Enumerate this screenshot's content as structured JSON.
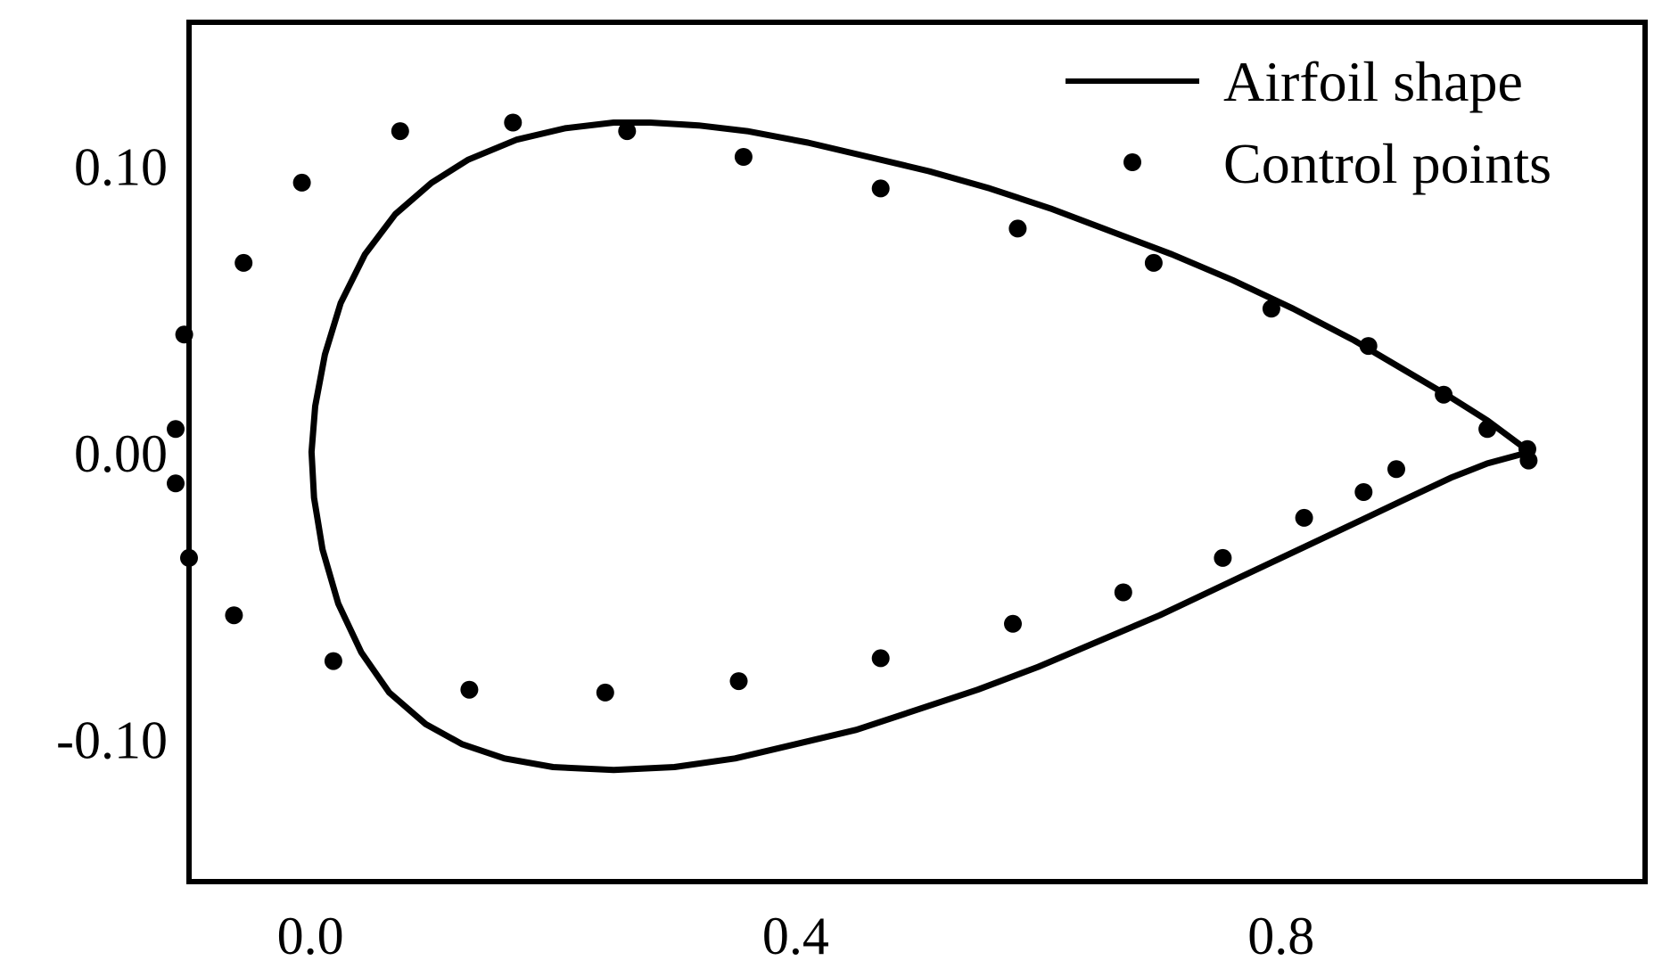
{
  "chart_data": {
    "type": "line",
    "title": "",
    "xlabel": "",
    "ylabel": "",
    "xlim": [
      -0.1,
      1.1
    ],
    "ylim": [
      -0.15,
      0.15
    ],
    "xticks": [
      0.0,
      0.4,
      0.8
    ],
    "xtick_labels": [
      "0.0",
      "0.4",
      "0.8"
    ],
    "yticks": [
      0.1,
      0.0,
      -0.1
    ],
    "ytick_labels": [
      "0.10",
      "0.00",
      "-0.10"
    ],
    "grid": false,
    "legend_position": "top-right",
    "colors": {
      "line": "#000000",
      "points": "#000000",
      "axes": "#000000",
      "background": "#ffffff"
    },
    "series": [
      {
        "name": "Airfoil shape",
        "style": "line",
        "points": [
          [
            1.005,
            0.0
          ],
          [
            0.97,
            0.011
          ],
          [
            0.94,
            0.019
          ],
          [
            0.9,
            0.029
          ],
          [
            0.86,
            0.039
          ],
          [
            0.81,
            0.05
          ],
          [
            0.76,
            0.06
          ],
          [
            0.71,
            0.069
          ],
          [
            0.66,
            0.077
          ],
          [
            0.61,
            0.085
          ],
          [
            0.56,
            0.092
          ],
          [
            0.51,
            0.098
          ],
          [
            0.46,
            0.103
          ],
          [
            0.41,
            0.108
          ],
          [
            0.36,
            0.112
          ],
          [
            0.32,
            0.114
          ],
          [
            0.28,
            0.115
          ],
          [
            0.25,
            0.115
          ],
          [
            0.21,
            0.113
          ],
          [
            0.17,
            0.109
          ],
          [
            0.13,
            0.102
          ],
          [
            0.1,
            0.094
          ],
          [
            0.07,
            0.083
          ],
          [
            0.045,
            0.069
          ],
          [
            0.025,
            0.052
          ],
          [
            0.012,
            0.034
          ],
          [
            0.004,
            0.016
          ],
          [
            0.001,
            0.0
          ],
          [
            0.003,
            -0.016
          ],
          [
            0.01,
            -0.034
          ],
          [
            0.023,
            -0.053
          ],
          [
            0.042,
            -0.07
          ],
          [
            0.065,
            -0.084
          ],
          [
            0.095,
            -0.095
          ],
          [
            0.125,
            -0.102
          ],
          [
            0.16,
            -0.107
          ],
          [
            0.2,
            -0.11
          ],
          [
            0.25,
            -0.111
          ],
          [
            0.3,
            -0.11
          ],
          [
            0.35,
            -0.107
          ],
          [
            0.4,
            -0.102
          ],
          [
            0.45,
            -0.097
          ],
          [
            0.5,
            -0.09
          ],
          [
            0.55,
            -0.083
          ],
          [
            0.6,
            -0.075
          ],
          [
            0.65,
            -0.066
          ],
          [
            0.7,
            -0.057
          ],
          [
            0.75,
            -0.047
          ],
          [
            0.8,
            -0.037
          ],
          [
            0.85,
            -0.027
          ],
          [
            0.9,
            -0.017
          ],
          [
            0.94,
            -0.009
          ],
          [
            0.97,
            -0.004
          ],
          [
            1.005,
            0.0
          ]
        ]
      },
      {
        "name": "Control points",
        "style": "markers",
        "points": [
          [
            1.003,
            0.001
          ],
          [
            0.97,
            0.008
          ],
          [
            0.934,
            0.02
          ],
          [
            0.872,
            0.037
          ],
          [
            0.792,
            0.05
          ],
          [
            0.695,
            0.066
          ],
          [
            0.583,
            0.078
          ],
          [
            0.47,
            0.092
          ],
          [
            0.357,
            0.103
          ],
          [
            0.261,
            0.112
          ],
          [
            0.167,
            0.115
          ],
          [
            0.074,
            0.112
          ],
          [
            -0.007,
            0.094
          ],
          [
            -0.055,
            0.066
          ],
          [
            -0.104,
            0.041
          ],
          [
            -0.111,
            0.008
          ],
          [
            -0.111,
            -0.011
          ],
          [
            -0.1,
            -0.037
          ],
          [
            -0.063,
            -0.057
          ],
          [
            0.019,
            -0.073
          ],
          [
            0.131,
            -0.083
          ],
          [
            0.243,
            -0.084
          ],
          [
            0.353,
            -0.08
          ],
          [
            0.47,
            -0.072
          ],
          [
            0.579,
            -0.06
          ],
          [
            0.67,
            -0.049
          ],
          [
            0.752,
            -0.037
          ],
          [
            0.819,
            -0.023
          ],
          [
            0.868,
            -0.014
          ],
          [
            0.895,
            -0.006
          ],
          [
            1.004,
            -0.003
          ]
        ]
      }
    ]
  }
}
